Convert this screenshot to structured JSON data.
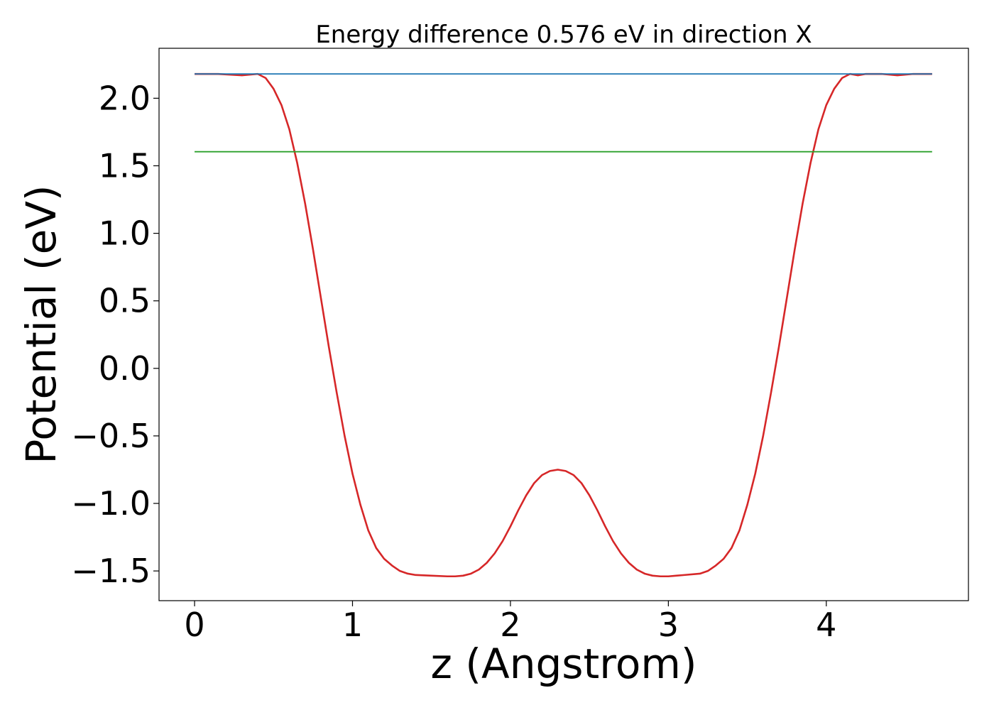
{
  "chart_data": {
    "type": "line",
    "title": "Energy difference 0.576 eV in direction X",
    "xlabel": "z (Angstrom)",
    "ylabel": "Potential (eV)",
    "xlim": [
      -0.225,
      4.9
    ],
    "ylim": [
      -1.72,
      2.37
    ],
    "xticks": [
      0,
      1,
      2,
      3,
      4
    ],
    "xtick_labels": [
      "0",
      "1",
      "2",
      "3",
      "4"
    ],
    "yticks": [
      2.0,
      1.5,
      1.0,
      0.5,
      0.0,
      -0.5,
      -1.0,
      -1.5
    ],
    "ytick_labels": [
      "2.0",
      "1.5",
      "1.0",
      "0.5",
      "0.0",
      "−0.5",
      "−1.0",
      "−1.5"
    ],
    "grid": false,
    "series": [
      {
        "color": "#d62728",
        "x": [
          0,
          0.15,
          0.3,
          0.4,
          0.45,
          0.5,
          0.55,
          0.6,
          0.65,
          0.7,
          0.75,
          0.8,
          0.85,
          0.9,
          0.95,
          1.0,
          1.05,
          1.1,
          1.15,
          1.2,
          1.25,
          1.3,
          1.35,
          1.4,
          1.5,
          1.6,
          1.65,
          1.7,
          1.75,
          1.8,
          1.85,
          1.9,
          1.95,
          2.0,
          2.05,
          2.1,
          2.15,
          2.2,
          2.25,
          2.3,
          2.35,
          2.4,
          2.45,
          2.5,
          2.55,
          2.6,
          2.65,
          2.7,
          2.75,
          2.8,
          2.85,
          2.9,
          2.95,
          3.0,
          3.05,
          3.1,
          3.2,
          3.25,
          3.3,
          3.35,
          3.4,
          3.45,
          3.5,
          3.55,
          3.6,
          3.65,
          3.7,
          3.75,
          3.8,
          3.85,
          3.9,
          3.95,
          4.0,
          4.05,
          4.1,
          4.15,
          4.2,
          4.25,
          4.3,
          4.35,
          4.45,
          4.55,
          4.67
        ],
        "y": [
          2.18,
          2.18,
          2.17,
          2.18,
          2.15,
          2.07,
          1.95,
          1.77,
          1.52,
          1.22,
          0.88,
          0.52,
          0.16,
          -0.18,
          -0.5,
          -0.78,
          -1.01,
          -1.2,
          -1.33,
          -1.41,
          -1.46,
          -1.5,
          -1.52,
          -1.53,
          -1.535,
          -1.54,
          -1.54,
          -1.535,
          -1.52,
          -1.49,
          -1.44,
          -1.37,
          -1.28,
          -1.17,
          -1.05,
          -0.94,
          -0.85,
          -0.79,
          -0.76,
          -0.75,
          -0.76,
          -0.79,
          -0.85,
          -0.94,
          -1.05,
          -1.17,
          -1.28,
          -1.37,
          -1.44,
          -1.49,
          -1.52,
          -1.535,
          -1.54,
          -1.54,
          -1.535,
          -1.53,
          -1.52,
          -1.5,
          -1.46,
          -1.41,
          -1.33,
          -1.2,
          -1.01,
          -0.78,
          -0.5,
          -0.18,
          0.16,
          0.52,
          0.88,
          1.22,
          1.52,
          1.77,
          1.95,
          2.07,
          2.15,
          2.18,
          2.17,
          2.18,
          2.18,
          2.18,
          2.17,
          2.18,
          2.18
        ]
      },
      {
        "color": "#1f77b4",
        "x": [
          0,
          4.67
        ],
        "y": [
          2.18,
          2.18
        ]
      },
      {
        "color": "#2ca02c",
        "x": [
          0,
          4.67
        ],
        "y": [
          1.604,
          1.604
        ]
      }
    ]
  }
}
